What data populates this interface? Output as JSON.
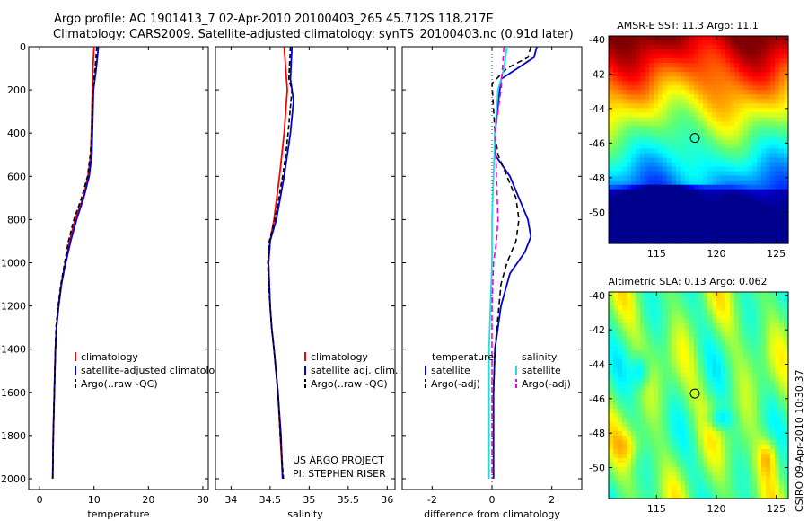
{
  "header": {
    "line1": "Argo profile: AO 1901413_7 02-Apr-2010 20100403_265 45.712S 118.217E",
    "line2": "Climatology: CARS2009. Satellite-adjusted climatology: synTS_20100403.nc (0.91d later)"
  },
  "credits": {
    "project": "US ARGO PROJECT",
    "pi": "PI: STEPHEN RISER",
    "stamp": "CSIRO 09-Apr-2010 10:30:37"
  },
  "colors": {
    "climatology": "#ff0000",
    "satellite": "#0000dd",
    "argo": "#000000",
    "sal_satellite": "#22dddd",
    "sal_argo": "#ee00ee"
  },
  "chart_data": [
    {
      "type": "line",
      "id": "temperature",
      "xlabel": "temperature",
      "xlim": [
        -2,
        31
      ],
      "ylim": [
        2050,
        0
      ],
      "xticks": [
        0,
        10,
        20,
        30
      ],
      "yticks": [
        0,
        200,
        400,
        600,
        800,
        1000,
        1200,
        1400,
        1600,
        1800,
        2000
      ],
      "legend": [
        "climatology",
        "satellite-adjusted climatology",
        "Argo(..raw -QC)"
      ],
      "series": [
        {
          "name": "climatology",
          "color": "#ff0000",
          "width": 1.8,
          "points": [
            [
              10.0,
              0
            ],
            [
              9.8,
              100
            ],
            [
              9.7,
              200
            ],
            [
              9.6,
              300
            ],
            [
              9.5,
              400
            ],
            [
              9.4,
              500
            ],
            [
              8.9,
              600
            ],
            [
              8.0,
              700
            ],
            [
              6.5,
              800
            ],
            [
              5.5,
              900
            ],
            [
              4.7,
              1000
            ],
            [
              4.0,
              1100
            ],
            [
              3.5,
              1200
            ],
            [
              3.1,
              1300
            ],
            [
              2.9,
              1400
            ],
            [
              2.7,
              1600
            ],
            [
              2.5,
              1800
            ],
            [
              2.4,
              2000
            ]
          ]
        },
        {
          "name": "satellite-adjusted climatology",
          "color": "#0000dd",
          "width": 1.8,
          "points": [
            [
              10.8,
              0
            ],
            [
              10.4,
              100
            ],
            [
              9.9,
              200
            ],
            [
              9.8,
              300
            ],
            [
              9.7,
              400
            ],
            [
              9.6,
              500
            ],
            [
              9.1,
              600
            ],
            [
              8.1,
              700
            ],
            [
              6.8,
              800
            ],
            [
              5.7,
              900
            ],
            [
              4.8,
              1000
            ],
            [
              4.0,
              1100
            ],
            [
              3.5,
              1200
            ],
            [
              3.1,
              1300
            ],
            [
              2.9,
              1400
            ],
            [
              2.7,
              1600
            ],
            [
              2.5,
              1800
            ],
            [
              2.4,
              2000
            ]
          ]
        },
        {
          "name": "Argo(..raw -QC)",
          "color": "#000000",
          "width": 1.6,
          "dash": "5,3",
          "points": [
            [
              10.5,
              0
            ],
            [
              10.2,
              100
            ],
            [
              9.8,
              200
            ],
            [
              9.7,
              300
            ],
            [
              9.6,
              400
            ],
            [
              9.3,
              500
            ],
            [
              8.8,
              600
            ],
            [
              7.7,
              700
            ],
            [
              6.3,
              800
            ],
            [
              5.3,
              900
            ],
            [
              4.6,
              1000
            ],
            [
              3.9,
              1100
            ],
            [
              3.4,
              1200
            ],
            [
              3.0,
              1300
            ],
            [
              2.9,
              1400
            ],
            [
              2.7,
              1600
            ],
            [
              2.5,
              1800
            ],
            [
              2.4,
              2000
            ]
          ]
        }
      ]
    },
    {
      "type": "line",
      "id": "salinity",
      "xlabel": "salinity",
      "xlim": [
        33.8,
        36.1
      ],
      "ylim": [
        2050,
        0
      ],
      "xticks": [
        34,
        34.5,
        35,
        35.5,
        36
      ],
      "legend": [
        "climatology",
        "satellite adj. clim.",
        "Argo(..raw -QC)"
      ],
      "series": [
        {
          "name": "climatology",
          "color": "#ff0000",
          "width": 1.8,
          "points": [
            [
              34.68,
              0
            ],
            [
              34.72,
              200
            ],
            [
              34.68,
              400
            ],
            [
              34.62,
              600
            ],
            [
              34.55,
              800
            ],
            [
              34.5,
              900
            ],
            [
              34.48,
              1000
            ],
            [
              34.49,
              1100
            ],
            [
              34.5,
              1200
            ],
            [
              34.52,
              1300
            ],
            [
              34.55,
              1400
            ],
            [
              34.6,
              1600
            ],
            [
              34.63,
              1800
            ],
            [
              34.66,
              2000
            ]
          ]
        },
        {
          "name": "satellite adj. clim.",
          "color": "#0000dd",
          "width": 1.8,
          "points": [
            [
              34.78,
              0
            ],
            [
              34.76,
              150
            ],
            [
              34.8,
              250
            ],
            [
              34.76,
              400
            ],
            [
              34.72,
              500
            ],
            [
              34.68,
              600
            ],
            [
              34.58,
              800
            ],
            [
              34.5,
              900
            ],
            [
              34.48,
              1000
            ],
            [
              34.49,
              1100
            ],
            [
              34.5,
              1200
            ],
            [
              34.52,
              1300
            ],
            [
              34.55,
              1400
            ],
            [
              34.6,
              1600
            ],
            [
              34.64,
              1800
            ],
            [
              34.66,
              2000
            ]
          ]
        },
        {
          "name": "Argo(..raw -QC)",
          "color": "#000000",
          "width": 1.6,
          "dash": "5,3",
          "points": [
            [
              34.76,
              0
            ],
            [
              34.74,
              150
            ],
            [
              34.78,
              200
            ],
            [
              34.73,
              400
            ],
            [
              34.7,
              500
            ],
            [
              34.66,
              600
            ],
            [
              34.56,
              800
            ],
            [
              34.49,
              900
            ],
            [
              34.47,
              1000
            ],
            [
              34.48,
              1100
            ],
            [
              34.5,
              1200
            ],
            [
              34.52,
              1300
            ],
            [
              34.55,
              1400
            ],
            [
              34.6,
              1600
            ],
            [
              34.63,
              1800
            ],
            [
              34.67,
              2000
            ]
          ]
        }
      ]
    },
    {
      "type": "line",
      "id": "difference",
      "xlabel": "difference from climatology",
      "xlim": [
        -3,
        3
      ],
      "ylim": [
        2050,
        0
      ],
      "xticks": [
        -2,
        0,
        2
      ],
      "legend_headers": [
        "temperature",
        "salinity"
      ],
      "legend": [
        "satellite",
        "Argo(-adj)",
        "satellite",
        "Argo(-adj)"
      ],
      "series": [
        {
          "name": "temperature satellite",
          "color": "#0000dd",
          "width": 1.8,
          "points": [
            [
              1.5,
              0
            ],
            [
              1.4,
              50
            ],
            [
              0.3,
              150
            ],
            [
              0.1,
              400
            ],
            [
              0.1,
              500
            ],
            [
              0.6,
              600
            ],
            [
              0.9,
              700
            ],
            [
              1.2,
              800
            ],
            [
              1.3,
              880
            ],
            [
              1.1,
              950
            ],
            [
              0.6,
              1050
            ],
            [
              0.3,
              1200
            ],
            [
              0.1,
              1400
            ],
            [
              0.05,
              1600
            ],
            [
              0.05,
              1800
            ],
            [
              0.05,
              2000
            ]
          ]
        },
        {
          "name": "temperature Argo(-adj)",
          "color": "#000000",
          "width": 1.6,
          "dash": "6,4",
          "points": [
            [
              1.3,
              0
            ],
            [
              1.2,
              50
            ],
            [
              0.5,
              100
            ],
            [
              0.0,
              170
            ],
            [
              0.1,
              400
            ],
            [
              0.2,
              500
            ],
            [
              0.5,
              600
            ],
            [
              0.8,
              700
            ],
            [
              0.9,
              800
            ],
            [
              0.8,
              900
            ],
            [
              0.5,
              1000
            ],
            [
              0.3,
              1100
            ],
            [
              0.1,
              1400
            ],
            [
              0.05,
              1600
            ],
            [
              0.05,
              1800
            ],
            [
              0.05,
              2000
            ]
          ]
        },
        {
          "name": "salinity satellite",
          "color": "#22dddd",
          "width": 1.8,
          "points": [
            [
              0.5,
              0
            ],
            [
              0.4,
              100
            ],
            [
              0.2,
              200
            ],
            [
              0.1,
              400
            ],
            [
              0.05,
              600
            ],
            [
              0.0,
              800
            ],
            [
              0.0,
              1000
            ],
            [
              -0.05,
              1200
            ],
            [
              -0.1,
              1400
            ],
            [
              -0.1,
              1600
            ],
            [
              -0.1,
              1800
            ],
            [
              -0.1,
              2000
            ]
          ]
        },
        {
          "name": "salinity Argo(-adj)",
          "color": "#ee00ee",
          "width": 1.6,
          "dash": "6,4",
          "points": [
            [
              0.4,
              0
            ],
            [
              0.3,
              200
            ],
            [
              0.1,
              400
            ],
            [
              0.15,
              600
            ],
            [
              0.2,
              800
            ],
            [
              0.15,
              900
            ],
            [
              0.05,
              1000
            ],
            [
              0.0,
              1200
            ],
            [
              0.0,
              1400
            ],
            [
              0.0,
              1600
            ],
            [
              0.0,
              1800
            ],
            [
              0.0,
              2000
            ]
          ]
        }
      ]
    },
    {
      "type": "heatmap",
      "id": "sst",
      "title": "AMSR-E SST: 11.3 Argo: 11.1",
      "xlim": [
        111,
        126
      ],
      "ylim": [
        -51.8,
        -39.8
      ],
      "xticks": [
        115,
        120,
        125
      ],
      "yticks": [
        -40,
        -42,
        -44,
        -46,
        -48,
        -50
      ],
      "marker": [
        118.2,
        -45.7
      ]
    },
    {
      "type": "heatmap",
      "id": "sla",
      "title": "Altimetric SLA: 0.13 Argo: 0.062",
      "xlim": [
        111,
        126
      ],
      "ylim": [
        -51.8,
        -39.8
      ],
      "xticks": [
        115,
        120,
        125
      ],
      "yticks": [
        -40,
        -42,
        -44,
        -46,
        -48,
        -50
      ],
      "marker": [
        118.2,
        -45.7
      ]
    }
  ]
}
